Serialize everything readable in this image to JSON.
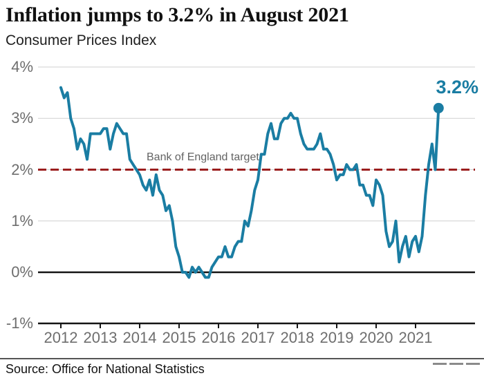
{
  "header": {
    "title": "Inflation jumps to 3.2% in August 2021",
    "subtitle": "Consumer Prices Index"
  },
  "chart_data": {
    "type": "line",
    "title": "Inflation jumps to 3.2% in August 2021",
    "subtitle": "Consumer Prices Index",
    "frequency": "monthly",
    "x_start": "2012-01",
    "x_end": "2021-08",
    "x_tick_labels": [
      "2012",
      "2013",
      "2014",
      "2015",
      "2016",
      "2017",
      "2018",
      "2019",
      "2020",
      "2021"
    ],
    "y_tick_labels": [
      "4%",
      "3%",
      "2%",
      "1%",
      "0%",
      "-1%"
    ],
    "y_tick_values": [
      4,
      3,
      2,
      1,
      0,
      -1
    ],
    "ylim": [
      -1,
      4
    ],
    "grid": true,
    "line_color": "#1a7da3",
    "series": [
      {
        "name": "CPI 12-month inflation rate (%)",
        "values": [
          3.6,
          3.4,
          3.5,
          3.0,
          2.8,
          2.4,
          2.6,
          2.5,
          2.2,
          2.7,
          2.7,
          2.7,
          2.7,
          2.8,
          2.8,
          2.4,
          2.7,
          2.9,
          2.8,
          2.7,
          2.7,
          2.2,
          2.1,
          2.0,
          1.9,
          1.7,
          1.6,
          1.8,
          1.5,
          1.9,
          1.6,
          1.5,
          1.2,
          1.3,
          1.0,
          0.5,
          0.3,
          0.0,
          0.0,
          -0.1,
          0.1,
          0.0,
          0.1,
          0.0,
          -0.1,
          -0.1,
          0.1,
          0.2,
          0.3,
          0.3,
          0.5,
          0.3,
          0.3,
          0.5,
          0.6,
          0.6,
          1.0,
          0.9,
          1.2,
          1.6,
          1.8,
          2.3,
          2.3,
          2.7,
          2.9,
          2.6,
          2.6,
          2.9,
          3.0,
          3.0,
          3.1,
          3.0,
          3.0,
          2.7,
          2.5,
          2.4,
          2.4,
          2.4,
          2.5,
          2.7,
          2.4,
          2.4,
          2.3,
          2.1,
          1.8,
          1.9,
          1.9,
          2.1,
          2.0,
          2.0,
          2.1,
          1.7,
          1.7,
          1.5,
          1.5,
          1.3,
          1.8,
          1.7,
          1.5,
          0.8,
          0.5,
          0.6,
          1.0,
          0.2,
          0.5,
          0.7,
          0.3,
          0.6,
          0.7,
          0.4,
          0.7,
          1.5,
          2.1,
          2.5,
          2.0,
          3.2
        ]
      }
    ],
    "target_line": {
      "value": 2,
      "label": "Bank of England target",
      "color": "#9b1e1e",
      "style": "dashed"
    },
    "end_point": {
      "x": "2021-08",
      "value": 3.2,
      "label": "3.2%"
    }
  },
  "footer": {
    "source": "Source: Office for National Statistics",
    "logo_dashes": 3
  }
}
